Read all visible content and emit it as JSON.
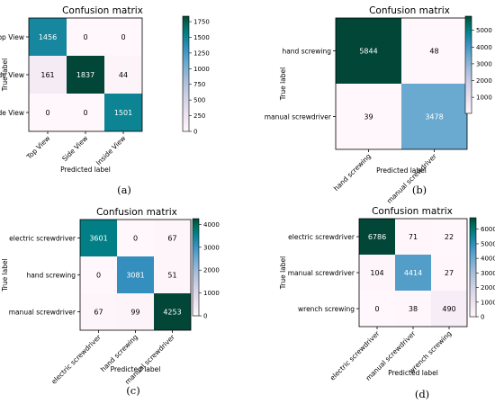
{
  "chart_data": [
    {
      "type": "heatmap",
      "title": "Confusion matrix",
      "caption": "(a)",
      "xlabel": "Predicted label",
      "ylabel": "True label",
      "classes": [
        "Top View",
        "Side View",
        "Inside View"
      ],
      "matrix": [
        [
          1456,
          0,
          0
        ],
        [
          161,
          1837,
          44
        ],
        [
          0,
          0,
          1501
        ]
      ],
      "colorbar": {
        "min": 0,
        "max": 1837,
        "ticks": [
          0,
          250,
          500,
          750,
          1000,
          1250,
          1500,
          1750
        ]
      },
      "colormap": "PuBuGn"
    },
    {
      "type": "heatmap",
      "title": "Confusion matrix",
      "caption": "(b)",
      "xlabel": "Predicted label",
      "ylabel": "True label",
      "classes": [
        "hand screwing",
        "manual screwdriver"
      ],
      "matrix": [
        [
          5844,
          48
        ],
        [
          39,
          3478
        ]
      ],
      "colorbar": {
        "min": 39,
        "max": 5844,
        "ticks": [
          1000,
          2000,
          3000,
          4000,
          5000
        ]
      },
      "colormap": "PuBuGn"
    },
    {
      "type": "heatmap",
      "title": "Confusion matrix",
      "caption": "(c)",
      "xlabel": "Predicted label",
      "ylabel": "True label",
      "classes": [
        "electric screwdriver",
        "hand screwing",
        "manual screwdriver"
      ],
      "matrix": [
        [
          3601,
          0,
          67
        ],
        [
          0,
          3081,
          51
        ],
        [
          67,
          99,
          4253
        ]
      ],
      "colorbar": {
        "min": 0,
        "max": 4253,
        "ticks": [
          0,
          1000,
          2000,
          3000,
          4000
        ]
      },
      "colormap": "PuBuGn"
    },
    {
      "type": "heatmap",
      "title": "Confusion matrix",
      "caption": "(d)",
      "xlabel": "Predicted label",
      "ylabel": "True label",
      "classes": [
        "electric screwdriver",
        "manual screwdriver",
        "wrench screwing"
      ],
      "matrix": [
        [
          6786,
          71,
          22
        ],
        [
          104,
          4414,
          27
        ],
        [
          0,
          38,
          490
        ]
      ],
      "colorbar": {
        "min": 0,
        "max": 6786,
        "ticks": [
          0,
          1000,
          2000,
          3000,
          4000,
          5000,
          6000
        ]
      },
      "colormap": "PuBuGn"
    }
  ]
}
